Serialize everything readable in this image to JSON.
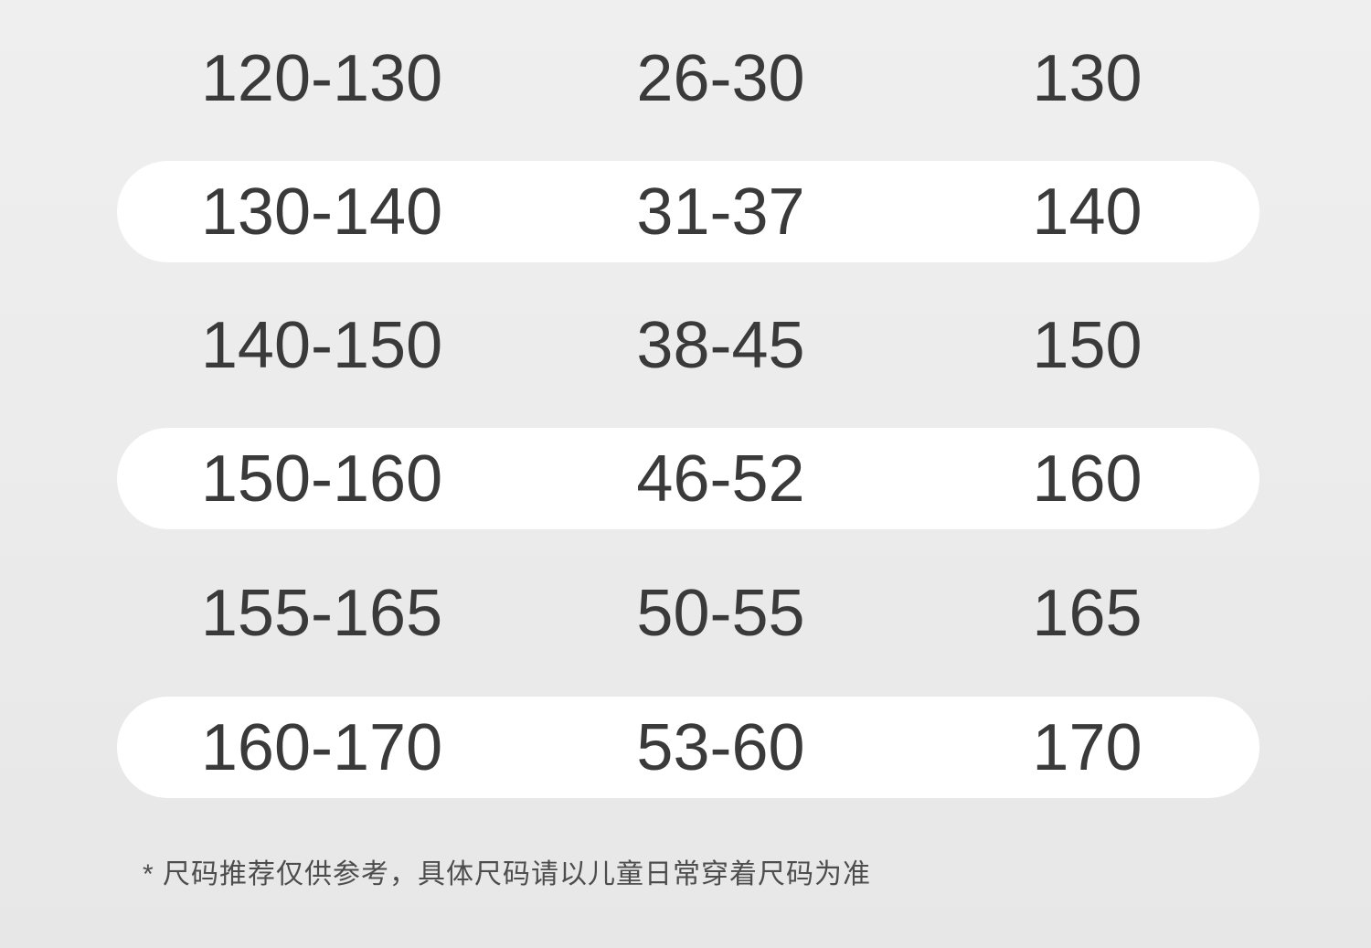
{
  "size_chart": {
    "rows": [
      {
        "cells": [
          "120-130",
          "26-30",
          "130"
        ],
        "highlighted": false
      },
      {
        "cells": [
          "130-140",
          "31-37",
          "140"
        ],
        "highlighted": true
      },
      {
        "cells": [
          "140-150",
          "38-45",
          "150"
        ],
        "highlighted": false
      },
      {
        "cells": [
          "150-160",
          "46-52",
          "160"
        ],
        "highlighted": true
      },
      {
        "cells": [
          "155-165",
          "50-55",
          "165"
        ],
        "highlighted": false
      },
      {
        "cells": [
          "160-170",
          "53-60",
          "170"
        ],
        "highlighted": true
      }
    ],
    "footnote": "* 尺码推荐仅供参考，具体尺码请以儿童日常穿着尺码为准"
  },
  "colors": {
    "background": "#ebebeb",
    "row_highlight": "#ffffff",
    "number_text": "#3a3a3a",
    "footnote_text": "#4d4d4d"
  }
}
